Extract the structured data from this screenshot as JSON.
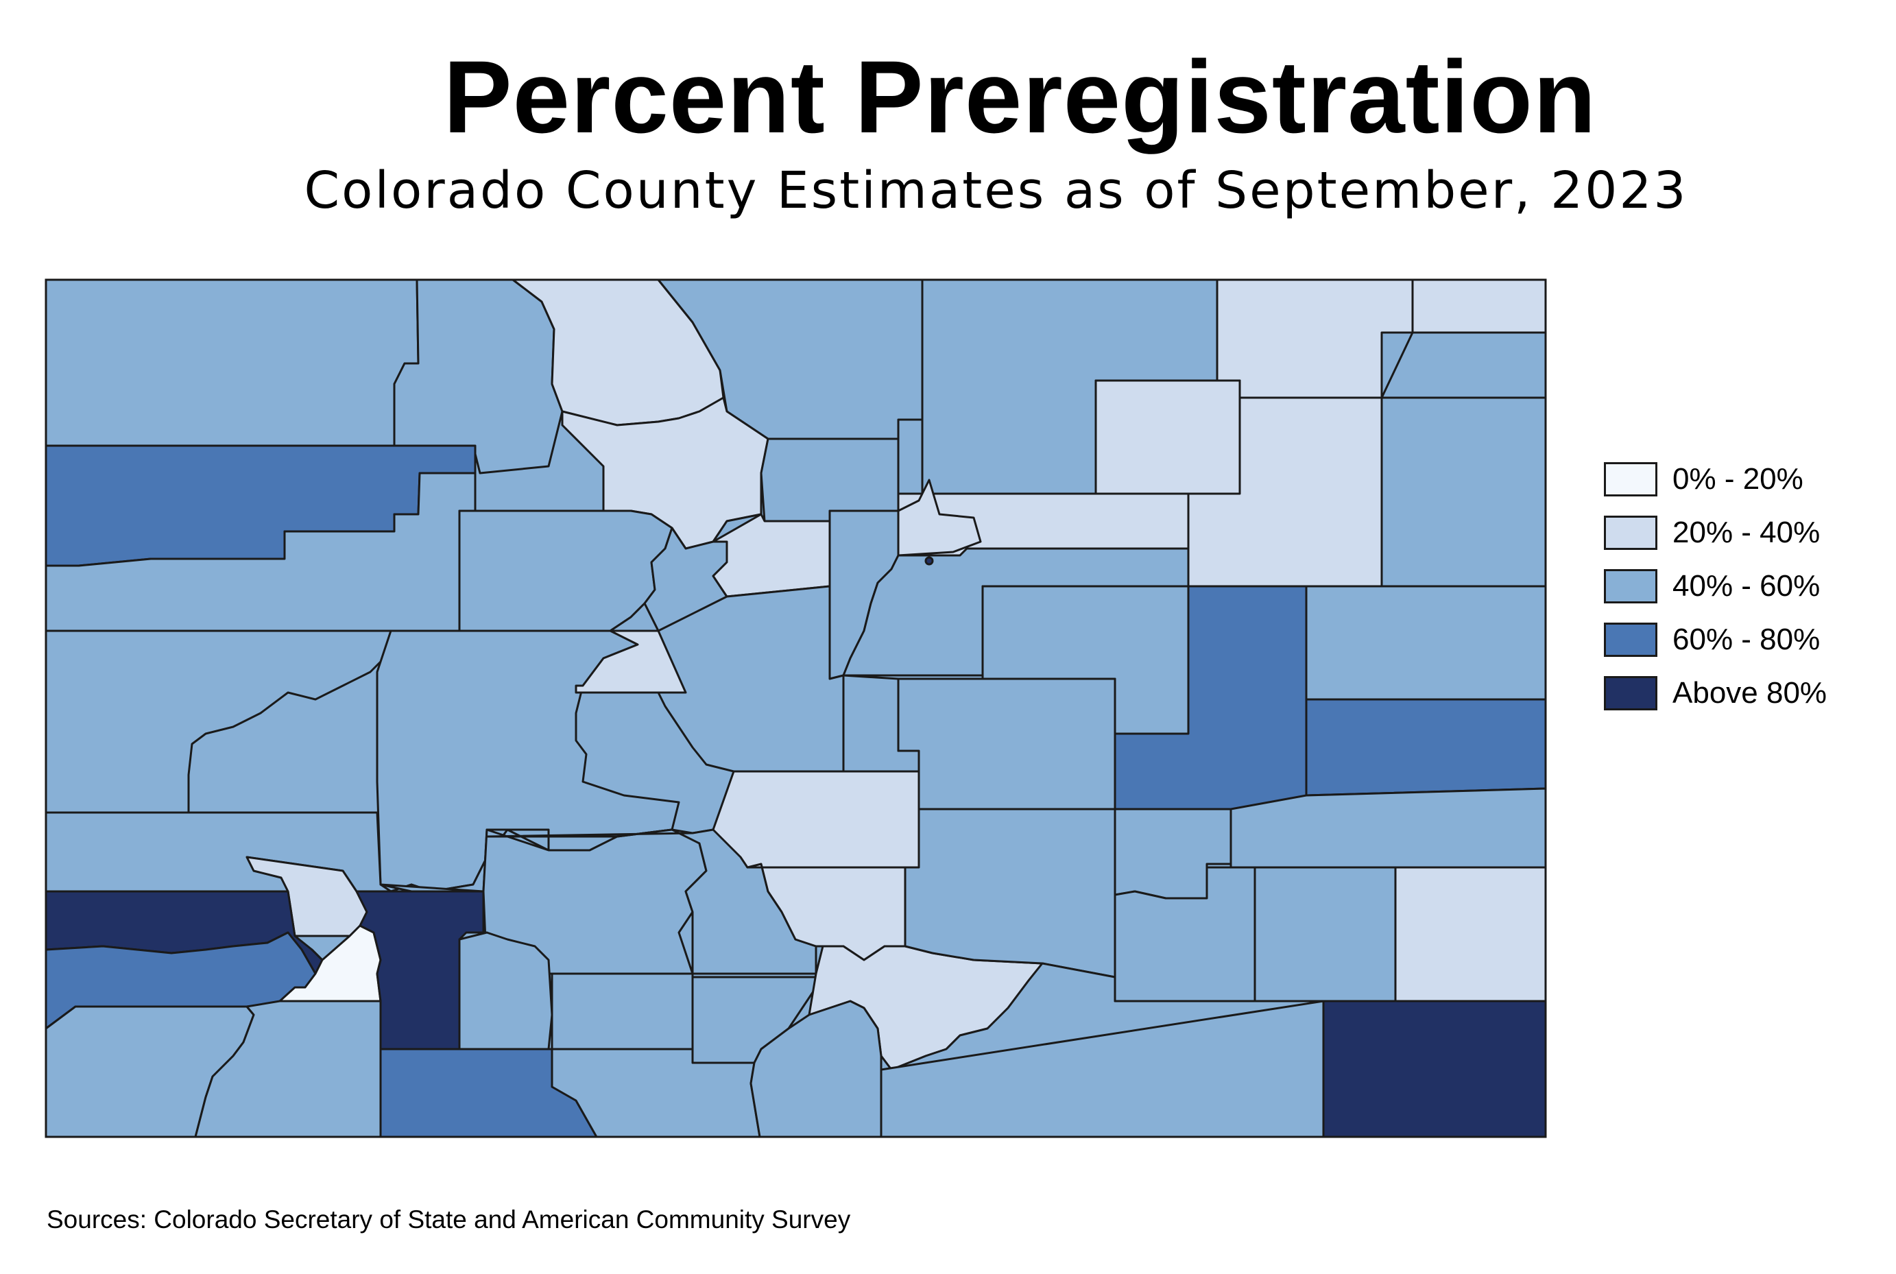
{
  "title": "Percent Preregistration",
  "subtitle": "Colorado County Estimates as of September, 2023",
  "source": "Sources: Colorado Secretary of State and American Community Survey",
  "colors": {
    "bin0": "#f3f8fd",
    "bin1": "#cfdcee",
    "bin2": "#88b0d6",
    "bin3": "#4a77b4",
    "bin4": "#213164",
    "border": "#1a1a1a"
  },
  "legend": [
    {
      "label": "0% - 20%",
      "color": "#f3f8fd"
    },
    {
      "label": "20% - 40%",
      "color": "#cfdcee"
    },
    {
      "label": "40% - 60%",
      "color": "#88b0d6"
    },
    {
      "label": "60% - 80%",
      "color": "#4a77b4"
    },
    {
      "label": "Above 80%",
      "color": "#213164"
    }
  ],
  "map_data": {
    "state": "Colorado",
    "counties_shown": 64,
    "bins": [
      "0% - 20%",
      "20% - 40%",
      "40% - 60%",
      "60% - 80%",
      "Above 80%"
    ]
  }
}
